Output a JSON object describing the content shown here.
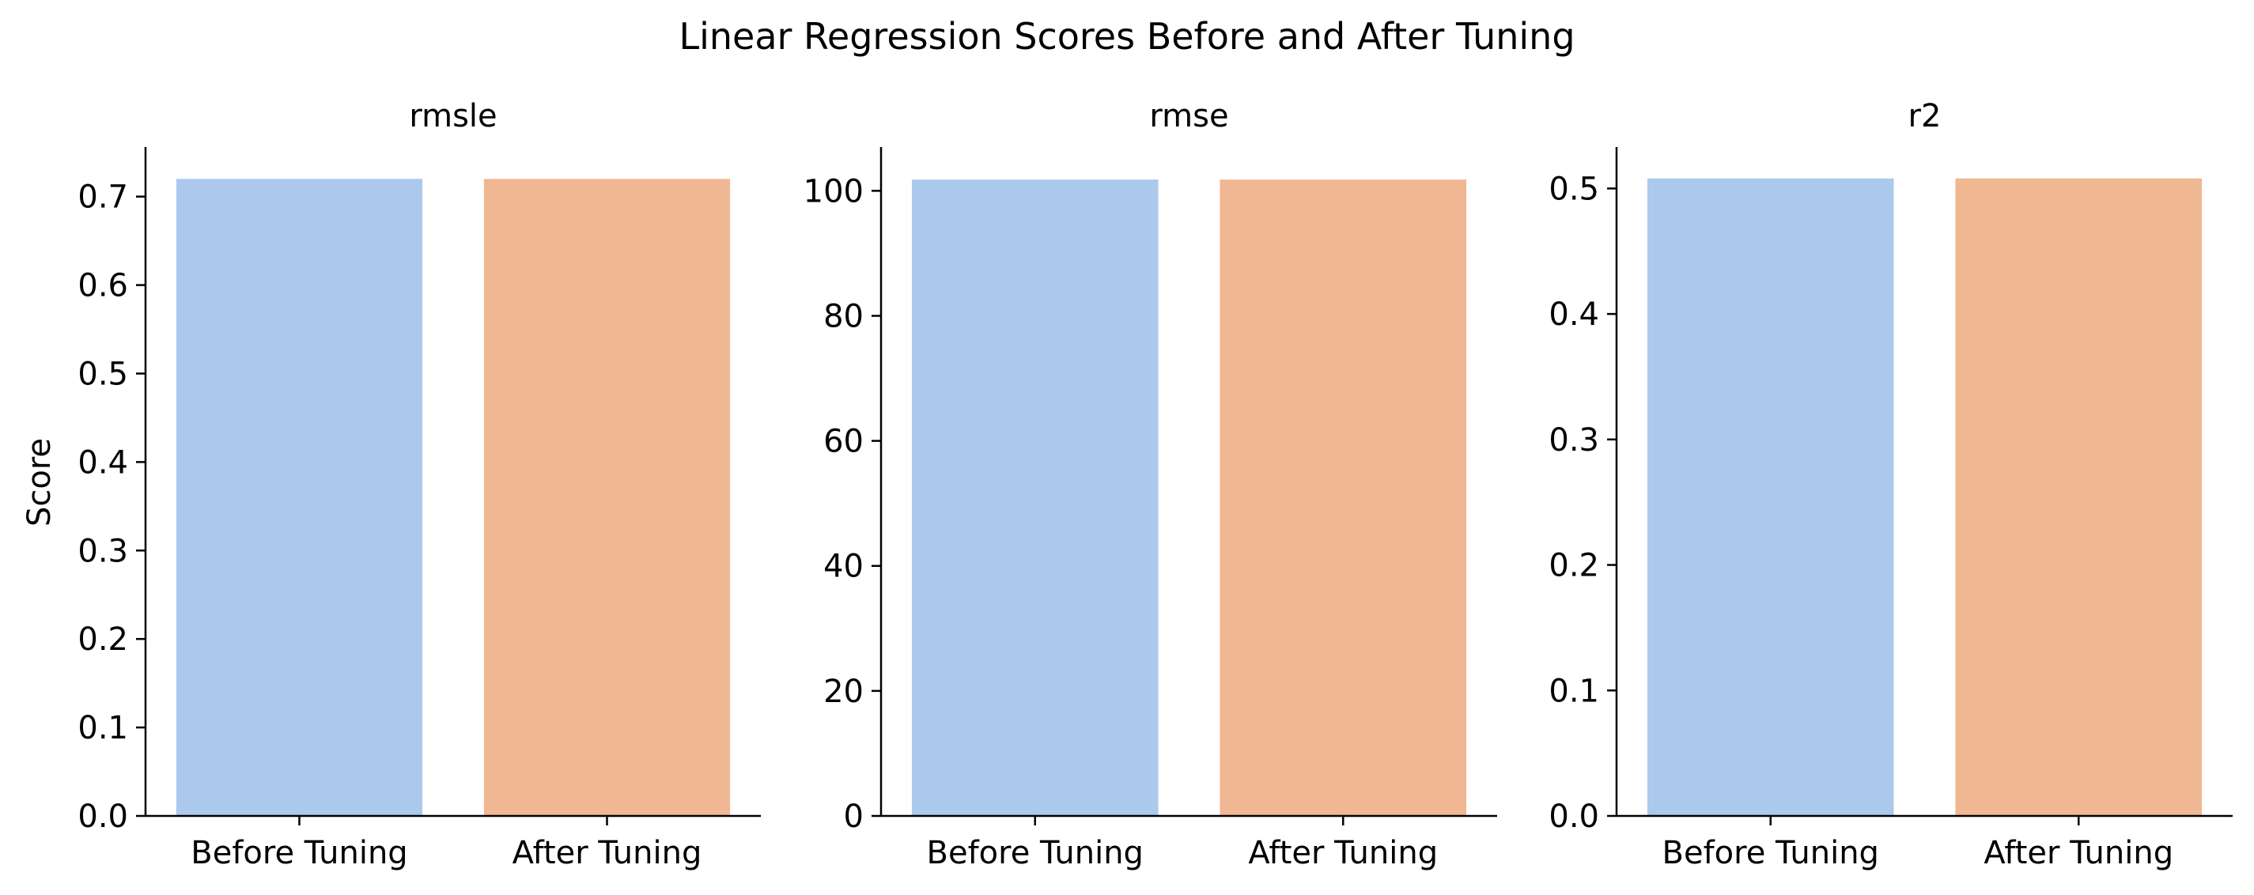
{
  "chart_data": {
    "type": "bar",
    "suptitle": "Linear Regression Scores Before and After Tuning",
    "ylabel": "Score",
    "categories": [
      "Before Tuning",
      "After Tuning"
    ],
    "colors": {
      "Before Tuning": "#abc9ec",
      "After Tuning": "#f0b793"
    },
    "grid": false,
    "subplots": [
      {
        "title": "rmsle",
        "ylim": [
          0,
          0.756
        ],
        "yticks": [
          "0.0",
          "0.1",
          "0.2",
          "0.3",
          "0.4",
          "0.5",
          "0.6",
          "0.7"
        ],
        "ytick_values": [
          0,
          0.1,
          0.2,
          0.3,
          0.4,
          0.5,
          0.6,
          0.7
        ],
        "values": [
          0.72,
          0.72
        ]
      },
      {
        "title": "rmse",
        "ylim": [
          0,
          107
        ],
        "yticks": [
          "0",
          "20",
          "40",
          "60",
          "80",
          "100"
        ],
        "ytick_values": [
          0,
          20,
          40,
          60,
          80,
          100
        ],
        "values": [
          101.8,
          101.8
        ]
      },
      {
        "title": "r2",
        "ylim": [
          0,
          0.533
        ],
        "yticks": [
          "0.0",
          "0.1",
          "0.2",
          "0.3",
          "0.4",
          "0.5"
        ],
        "ytick_values": [
          0,
          0.1,
          0.2,
          0.3,
          0.4,
          0.5
        ],
        "values": [
          0.508,
          0.508
        ]
      }
    ]
  }
}
